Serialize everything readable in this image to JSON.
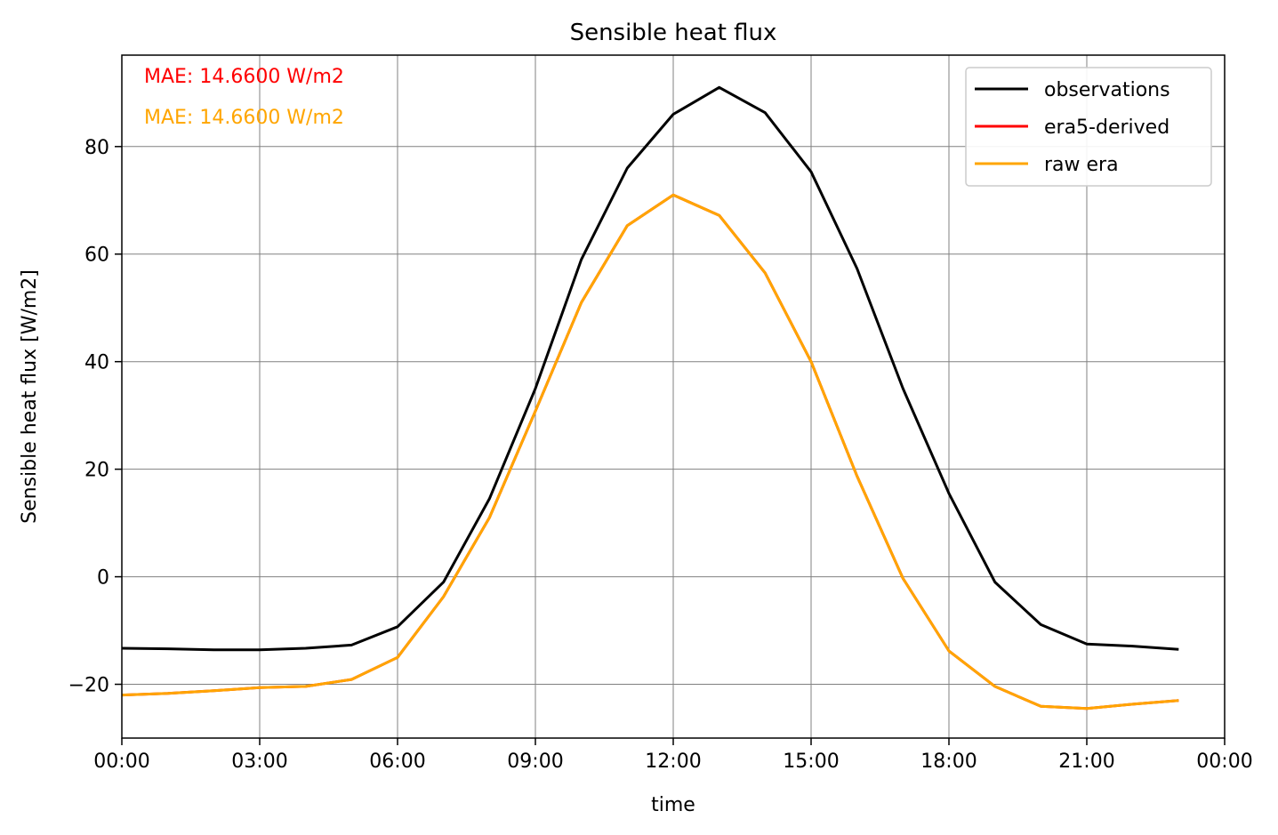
{
  "chart_data": {
    "type": "line",
    "title": "Sensible heat flux",
    "xlabel": "time",
    "ylabel": "Sensible heat flux [W/m2]",
    "xlim": [
      0,
      24
    ],
    "ylim": [
      -30,
      97
    ],
    "x_ticks": [
      {
        "value": 0,
        "label": "00:00"
      },
      {
        "value": 3,
        "label": "03:00"
      },
      {
        "value": 6,
        "label": "06:00"
      },
      {
        "value": 9,
        "label": "09:00"
      },
      {
        "value": 12,
        "label": "12:00"
      },
      {
        "value": 15,
        "label": "15:00"
      },
      {
        "value": 18,
        "label": "18:00"
      },
      {
        "value": 21,
        "label": "21:00"
      },
      {
        "value": 24,
        "label": "00:00"
      }
    ],
    "y_ticks": [
      {
        "value": -20,
        "label": "−20"
      },
      {
        "value": 0,
        "label": "0"
      },
      {
        "value": 20,
        "label": "20"
      },
      {
        "value": 40,
        "label": "40"
      },
      {
        "value": 60,
        "label": "60"
      },
      {
        "value": 80,
        "label": "80"
      }
    ],
    "grid": true,
    "legend_position": "top-right",
    "x": [
      0,
      1,
      2,
      3,
      4,
      5,
      6,
      7,
      8,
      9,
      10,
      11,
      12,
      13,
      14,
      15,
      16,
      17,
      18,
      19,
      20,
      21,
      22,
      23
    ],
    "series": [
      {
        "name": "observations",
        "color": "#000000",
        "values": [
          -13.3,
          -13.4,
          -13.6,
          -13.6,
          -13.3,
          -12.7,
          -9.3,
          -1.0,
          14.5,
          35.0,
          59.0,
          76.0,
          86.0,
          91.0,
          86.3,
          75.3,
          57.3,
          35.0,
          15.5,
          -1.0,
          -8.9,
          -12.5,
          -12.9,
          -13.5
        ]
      },
      {
        "name": "era5-derived",
        "color": "#ff0000",
        "values": [
          -22.0,
          -21.7,
          -21.2,
          -20.6,
          -20.4,
          -19.1,
          -15.0,
          -3.7,
          11.0,
          30.8,
          51.0,
          65.3,
          71.0,
          67.2,
          56.5,
          40.0,
          18.7,
          -0.3,
          -13.8,
          -20.4,
          -24.1,
          -24.5,
          -23.7,
          -23.0
        ]
      },
      {
        "name": "raw era",
        "color": "#ffa500",
        "values": [
          -22.0,
          -21.7,
          -21.2,
          -20.6,
          -20.4,
          -19.1,
          -15.0,
          -3.7,
          11.0,
          30.8,
          51.0,
          65.3,
          71.0,
          67.2,
          56.5,
          40.0,
          18.7,
          -0.3,
          -13.8,
          -20.4,
          -24.1,
          -24.5,
          -23.7,
          -23.0
        ]
      }
    ],
    "annotations": [
      {
        "text": "MAE: 14.6600 W/m2",
        "color": "#ff0000"
      },
      {
        "text": "MAE: 14.6600 W/m2",
        "color": "#ffa500"
      }
    ]
  }
}
